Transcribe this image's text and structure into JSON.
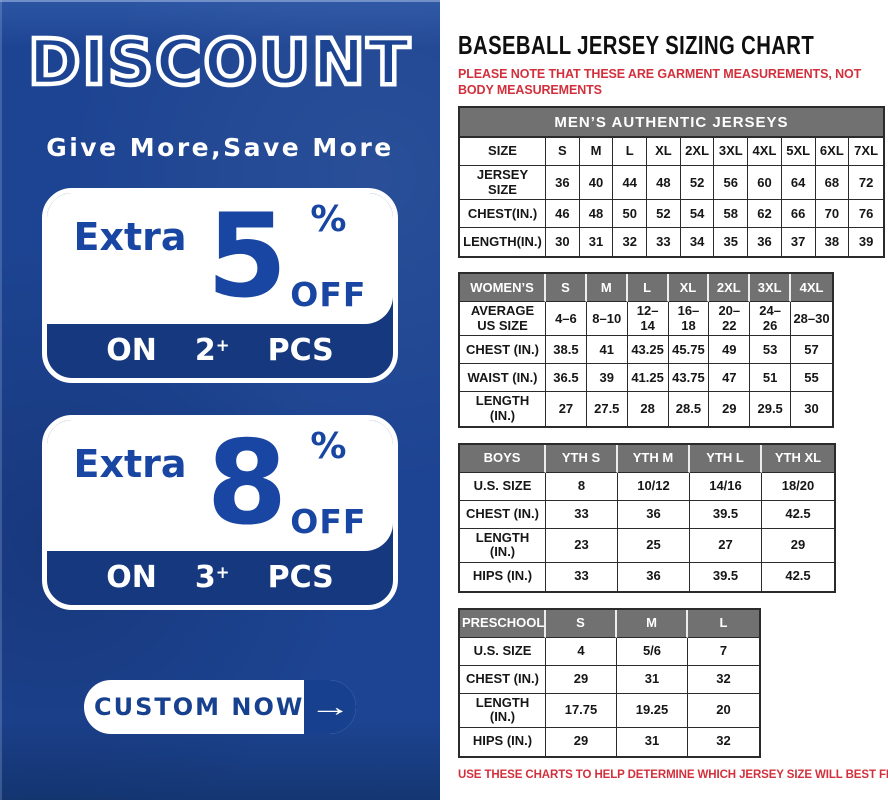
{
  "brand_colors": {
    "panel_blue": "#1d4492",
    "deep_blue": "#1846a2",
    "band_navy": "#16387f",
    "header_gray": "#717171",
    "alert_red": "#d2303c"
  },
  "left_panel": {
    "title": "DISCOUNT",
    "subtitle": "Give More,Save More",
    "offers": [
      {
        "prefix": "Extra",
        "value": "5",
        "percent_sign": "%",
        "off_label": "OFF",
        "on_label": "ON",
        "quantity": "2",
        "plus_sign": "+",
        "pcs_label": "PCS"
      },
      {
        "prefix": "Extra",
        "value": "8",
        "percent_sign": "%",
        "off_label": "OFF",
        "on_label": "ON",
        "quantity": "3",
        "plus_sign": "+",
        "pcs_label": "PCS"
      }
    ],
    "cta": {
      "label": "CUSTOM NOW",
      "arrow_icon": "→"
    }
  },
  "right_panel": {
    "title": "BASEBALL JERSEY SIZING CHART",
    "top_note": "PLEASE NOTE THAT THESE ARE GARMENT MEASUREMENTS, NOT BODY MEASUREMENTS",
    "bottom_note": "USE THESE CHARTS TO HELP DETERMINE WHICH JERSEY SIZE WILL BEST FIT YOU."
  },
  "chart_data": [
    {
      "type": "table",
      "title": "MEN’S AUTHENTIC JERSEYS",
      "header": [
        "SIZE",
        "S",
        "M",
        "L",
        "XL",
        "2XL",
        "3XL",
        "4XL",
        "5XL",
        "6XL",
        "7XL"
      ],
      "rows": [
        [
          "JERSEY SIZE",
          "36",
          "40",
          "44",
          "48",
          "52",
          "56",
          "60",
          "64",
          "68",
          "72"
        ],
        [
          "CHEST(IN.)",
          "46",
          "48",
          "50",
          "52",
          "54",
          "58",
          "62",
          "66",
          "70",
          "76"
        ],
        [
          "LENGTH(IN.)",
          "30",
          "31",
          "32",
          "33",
          "34",
          "35",
          "36",
          "37",
          "38",
          "39"
        ]
      ]
    },
    {
      "type": "table",
      "title": "WOMEN’S",
      "header": [
        "WOMEN’S",
        "S",
        "M",
        "L",
        "XL",
        "2XL",
        "3XL",
        "4XL"
      ],
      "rows": [
        [
          "AVERAGE US SIZE",
          "4–6",
          "8–10",
          "12–14",
          "16–18",
          "20–22",
          "24–26",
          "28–30"
        ],
        [
          "CHEST (IN.)",
          "38.5",
          "41",
          "43.25",
          "45.75",
          "49",
          "53",
          "57"
        ],
        [
          "WAIST (IN.)",
          "36.5",
          "39",
          "41.25",
          "43.75",
          "47",
          "51",
          "55"
        ],
        [
          "LENGTH (IN.)",
          "27",
          "27.5",
          "28",
          "28.5",
          "29",
          "29.5",
          "30"
        ]
      ]
    },
    {
      "type": "table",
      "title": "BOYS",
      "header": [
        "BOYS",
        "YTH S",
        "YTH M",
        "YTH L",
        "YTH XL"
      ],
      "rows": [
        [
          "U.S. SIZE",
          "8",
          "10/12",
          "14/16",
          "18/20"
        ],
        [
          "CHEST (IN.)",
          "33",
          "36",
          "39.5",
          "42.5"
        ],
        [
          "LENGTH (IN.)",
          "23",
          "25",
          "27",
          "29"
        ],
        [
          "HIPS (IN.)",
          "33",
          "36",
          "39.5",
          "42.5"
        ]
      ]
    },
    {
      "type": "table",
      "title": "PRESCHOOL",
      "header": [
        "PRESCHOOL",
        "S",
        "M",
        "L"
      ],
      "rows": [
        [
          "U.S. SIZE",
          "4",
          "5/6",
          "7"
        ],
        [
          "CHEST (IN.)",
          "29",
          "31",
          "32"
        ],
        [
          "LENGTH (IN.)",
          "17.75",
          "19.25",
          "20"
        ],
        [
          "HIPS (IN.)",
          "29",
          "31",
          "32"
        ]
      ]
    }
  ]
}
